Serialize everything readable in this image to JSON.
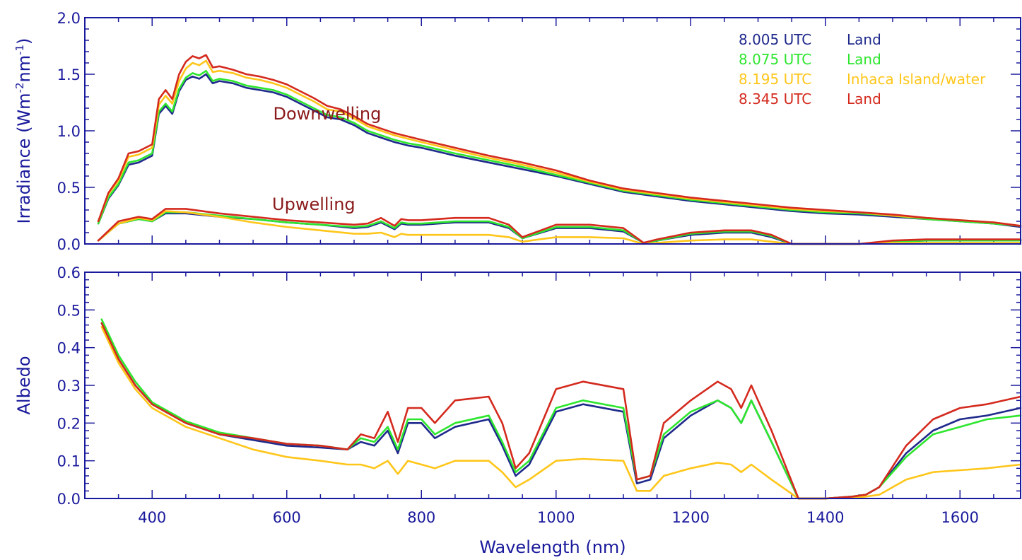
{
  "colors": {
    "axis": "#1a1a9c",
    "annotation": "#8b1a1a"
  },
  "xlabel": "Wavelength (nm)",
  "chart_data": [
    {
      "type": "line",
      "panel": "top",
      "title": "",
      "xlabel": "",
      "ylabel_main": "Irradiance (Wm",
      "ylabel_sup1": "-2",
      "ylabel_mid": "nm",
      "ylabel_sup2": "-1",
      "ylabel_end": ")",
      "xlim": [
        300,
        1690
      ],
      "ylim": [
        0.0,
        2.0
      ],
      "yticks": [
        {
          "value": 0.0,
          "label": "0.0"
        },
        {
          "value": 0.5,
          "label": "0.5"
        },
        {
          "value": 1.0,
          "label": "1.0"
        },
        {
          "value": 1.5,
          "label": "1.5"
        },
        {
          "value": 2.0,
          "label": "2.0"
        }
      ],
      "legend_position": "top-right",
      "legend": [
        {
          "time": "8.005 UTC",
          "surface": "Land",
          "color": "#1f2a8c"
        },
        {
          "time": "8.075 UTC",
          "surface": "Land",
          "color": "#2ee62e"
        },
        {
          "time": "8.195 UTC",
          "surface": "Inhaca Island/water",
          "color": "#ffc61a"
        },
        {
          "time": "8.345 UTC",
          "surface": "Land",
          "color": "#d42a1e"
        }
      ],
      "annotations": [
        {
          "text": "Downwelling",
          "x": 660,
          "y": 1.1
        },
        {
          "text": "Upwelling",
          "x": 640,
          "y": 0.3
        }
      ],
      "groups": [
        {
          "name": "Downwelling",
          "x": [
            320,
            335,
            350,
            365,
            380,
            390,
            400,
            410,
            420,
            430,
            440,
            450,
            460,
            470,
            480,
            490,
            500,
            520,
            540,
            560,
            580,
            600,
            620,
            640,
            660,
            680,
            700,
            720,
            740,
            760,
            780,
            800,
            850,
            900,
            950,
            1000,
            1050,
            1100,
            1150,
            1200,
            1250,
            1300,
            1350,
            1400,
            1450,
            1500,
            1550,
            1600,
            1650,
            1690
          ],
          "series": [
            {
              "color": "#1f2a8c",
              "values": [
                0.18,
                0.4,
                0.52,
                0.7,
                0.72,
                0.75,
                0.78,
                1.15,
                1.22,
                1.15,
                1.35,
                1.45,
                1.48,
                1.46,
                1.5,
                1.42,
                1.44,
                1.42,
                1.38,
                1.36,
                1.34,
                1.3,
                1.24,
                1.18,
                1.12,
                1.1,
                1.05,
                0.98,
                0.94,
                0.9,
                0.87,
                0.85,
                0.78,
                0.72,
                0.66,
                0.6,
                0.53,
                0.46,
                0.42,
                0.38,
                0.35,
                0.32,
                0.29,
                0.27,
                0.26,
                0.24,
                0.22,
                0.2,
                0.18,
                0.15
              ]
            },
            {
              "color": "#2ee62e",
              "values": [
                0.18,
                0.41,
                0.53,
                0.72,
                0.74,
                0.77,
                0.8,
                1.17,
                1.24,
                1.17,
                1.37,
                1.47,
                1.51,
                1.49,
                1.53,
                1.44,
                1.46,
                1.44,
                1.4,
                1.38,
                1.36,
                1.32,
                1.26,
                1.2,
                1.14,
                1.12,
                1.07,
                1.0,
                0.96,
                0.92,
                0.89,
                0.87,
                0.8,
                0.74,
                0.68,
                0.61,
                0.54,
                0.47,
                0.43,
                0.39,
                0.36,
                0.33,
                0.3,
                0.28,
                0.27,
                0.25,
                0.22,
                0.2,
                0.18,
                0.16
              ]
            },
            {
              "color": "#ffc61a",
              "values": [
                0.2,
                0.44,
                0.56,
                0.77,
                0.79,
                0.82,
                0.85,
                1.23,
                1.31,
                1.24,
                1.44,
                1.55,
                1.6,
                1.58,
                1.62,
                1.52,
                1.53,
                1.51,
                1.47,
                1.45,
                1.42,
                1.38,
                1.32,
                1.26,
                1.19,
                1.17,
                1.11,
                1.04,
                1.0,
                0.96,
                0.93,
                0.9,
                0.83,
                0.76,
                0.7,
                0.63,
                0.55,
                0.48,
                0.44,
                0.4,
                0.37,
                0.34,
                0.31,
                0.29,
                0.28,
                0.25,
                0.23,
                0.21,
                0.19,
                0.16
              ]
            },
            {
              "color": "#d42a1e",
              "values": [
                0.2,
                0.45,
                0.58,
                0.8,
                0.82,
                0.85,
                0.88,
                1.28,
                1.36,
                1.28,
                1.5,
                1.61,
                1.66,
                1.64,
                1.67,
                1.56,
                1.57,
                1.54,
                1.5,
                1.48,
                1.45,
                1.41,
                1.35,
                1.29,
                1.22,
                1.19,
                1.13,
                1.06,
                1.02,
                0.98,
                0.95,
                0.92,
                0.85,
                0.78,
                0.72,
                0.65,
                0.56,
                0.49,
                0.45,
                0.41,
                0.38,
                0.35,
                0.32,
                0.3,
                0.28,
                0.26,
                0.23,
                0.21,
                0.19,
                0.16
              ]
            }
          ]
        },
        {
          "name": "Upwelling",
          "x": [
            320,
            350,
            380,
            400,
            420,
            450,
            500,
            550,
            600,
            650,
            700,
            720,
            740,
            760,
            770,
            780,
            800,
            850,
            900,
            930,
            950,
            1000,
            1050,
            1100,
            1130,
            1150,
            1200,
            1250,
            1290,
            1320,
            1350,
            1380,
            1400,
            1450,
            1500,
            1550,
            1600,
            1650,
            1690
          ],
          "series": [
            {
              "color": "#1f2a8c",
              "values": [
                0.03,
                0.18,
                0.22,
                0.2,
                0.27,
                0.27,
                0.24,
                0.22,
                0.19,
                0.17,
                0.14,
                0.15,
                0.19,
                0.13,
                0.18,
                0.17,
                0.17,
                0.19,
                0.19,
                0.14,
                0.05,
                0.14,
                0.14,
                0.11,
                0.01,
                0.03,
                0.08,
                0.1,
                0.1,
                0.06,
                0.0,
                0.0,
                0.0,
                0.0,
                0.02,
                0.03,
                0.03,
                0.03,
                0.03
              ]
            },
            {
              "color": "#2ee62e",
              "values": [
                0.03,
                0.18,
                0.22,
                0.2,
                0.28,
                0.28,
                0.25,
                0.22,
                0.19,
                0.17,
                0.15,
                0.16,
                0.2,
                0.14,
                0.19,
                0.18,
                0.18,
                0.2,
                0.2,
                0.15,
                0.05,
                0.15,
                0.15,
                0.12,
                0.01,
                0.03,
                0.09,
                0.11,
                0.11,
                0.07,
                0.0,
                0.0,
                0.0,
                0.0,
                0.02,
                0.03,
                0.03,
                0.03,
                0.03
              ]
            },
            {
              "color": "#ffc61a",
              "values": [
                0.03,
                0.18,
                0.23,
                0.21,
                0.29,
                0.28,
                0.24,
                0.19,
                0.15,
                0.12,
                0.09,
                0.09,
                0.1,
                0.06,
                0.09,
                0.08,
                0.08,
                0.08,
                0.08,
                0.06,
                0.02,
                0.06,
                0.06,
                0.05,
                0.0,
                0.01,
                0.03,
                0.04,
                0.04,
                0.02,
                0.0,
                0.0,
                0.0,
                0.0,
                0.01,
                0.01,
                0.01,
                0.01,
                0.01
              ]
            },
            {
              "color": "#d42a1e",
              "values": [
                0.03,
                0.2,
                0.24,
                0.22,
                0.31,
                0.31,
                0.27,
                0.24,
                0.21,
                0.19,
                0.17,
                0.18,
                0.23,
                0.16,
                0.22,
                0.21,
                0.21,
                0.23,
                0.23,
                0.17,
                0.06,
                0.17,
                0.17,
                0.14,
                0.01,
                0.04,
                0.1,
                0.12,
                0.12,
                0.08,
                0.0,
                0.0,
                0.0,
                0.0,
                0.03,
                0.04,
                0.04,
                0.04,
                0.04
              ]
            }
          ]
        }
      ]
    },
    {
      "type": "line",
      "panel": "bottom",
      "title": "",
      "xlabel": "Wavelength (nm)",
      "ylabel": "Albedo",
      "xlim": [
        300,
        1690
      ],
      "ylim": [
        0.0,
        0.6
      ],
      "xticks": [
        {
          "value": 400,
          "label": "400"
        },
        {
          "value": 600,
          "label": "600"
        },
        {
          "value": 800,
          "label": "800"
        },
        {
          "value": 1000,
          "label": "1000"
        },
        {
          "value": 1200,
          "label": "1200"
        },
        {
          "value": 1400,
          "label": "1400"
        },
        {
          "value": 1600,
          "label": "1600"
        }
      ],
      "yticks": [
        {
          "value": 0.0,
          "label": "0.0"
        },
        {
          "value": 0.1,
          "label": "0.1"
        },
        {
          "value": 0.2,
          "label": "0.2"
        },
        {
          "value": 0.3,
          "label": "0.3"
        },
        {
          "value": 0.4,
          "label": "0.4"
        },
        {
          "value": 0.5,
          "label": "0.5"
        },
        {
          "value": 0.6,
          "label": "0.6"
        }
      ],
      "x": [
        325,
        350,
        375,
        400,
        450,
        500,
        550,
        600,
        650,
        690,
        710,
        730,
        750,
        765,
        780,
        800,
        820,
        850,
        900,
        920,
        940,
        960,
        1000,
        1040,
        1100,
        1120,
        1140,
        1160,
        1200,
        1240,
        1260,
        1275,
        1290,
        1320,
        1360,
        1400,
        1440,
        1460,
        1480,
        1520,
        1560,
        1600,
        1640,
        1690
      ],
      "series": [
        {
          "color": "#1f2a8c",
          "values": [
            0.465,
            0.37,
            0.3,
            0.25,
            0.2,
            0.17,
            0.155,
            0.14,
            0.135,
            0.13,
            0.15,
            0.14,
            0.18,
            0.12,
            0.2,
            0.2,
            0.16,
            0.19,
            0.21,
            0.14,
            0.06,
            0.09,
            0.23,
            0.25,
            0.23,
            0.04,
            0.05,
            0.16,
            0.22,
            0.26,
            0.24,
            0.2,
            0.26,
            0.15,
            0.0,
            0.0,
            0.005,
            0.01,
            0.03,
            0.12,
            0.18,
            0.21,
            0.22,
            0.24
          ]
        },
        {
          "color": "#2ee62e",
          "values": [
            0.475,
            0.38,
            0.31,
            0.255,
            0.205,
            0.175,
            0.16,
            0.145,
            0.14,
            0.13,
            0.16,
            0.15,
            0.19,
            0.13,
            0.21,
            0.21,
            0.17,
            0.2,
            0.22,
            0.15,
            0.07,
            0.1,
            0.24,
            0.26,
            0.24,
            0.05,
            0.06,
            0.17,
            0.23,
            0.26,
            0.24,
            0.2,
            0.26,
            0.15,
            0.0,
            0.0,
            0.005,
            0.01,
            0.03,
            0.11,
            0.17,
            0.19,
            0.21,
            0.22
          ]
        },
        {
          "color": "#ffc61a",
          "values": [
            0.455,
            0.36,
            0.29,
            0.24,
            0.19,
            0.16,
            0.13,
            0.11,
            0.1,
            0.09,
            0.09,
            0.08,
            0.1,
            0.065,
            0.1,
            0.09,
            0.08,
            0.1,
            0.1,
            0.07,
            0.03,
            0.05,
            0.1,
            0.105,
            0.1,
            0.02,
            0.02,
            0.06,
            0.08,
            0.095,
            0.09,
            0.07,
            0.09,
            0.05,
            0.0,
            0.0,
            0.002,
            0.005,
            0.01,
            0.05,
            0.07,
            0.075,
            0.08,
            0.09
          ]
        },
        {
          "color": "#d42a1e",
          "values": [
            0.465,
            0.37,
            0.3,
            0.25,
            0.2,
            0.17,
            0.16,
            0.145,
            0.14,
            0.13,
            0.17,
            0.16,
            0.23,
            0.15,
            0.24,
            0.24,
            0.2,
            0.26,
            0.27,
            0.2,
            0.08,
            0.12,
            0.29,
            0.31,
            0.29,
            0.05,
            0.06,
            0.2,
            0.26,
            0.31,
            0.29,
            0.24,
            0.3,
            0.18,
            0.0,
            0.0,
            0.005,
            0.01,
            0.03,
            0.14,
            0.21,
            0.24,
            0.25,
            0.27
          ]
        }
      ]
    }
  ]
}
